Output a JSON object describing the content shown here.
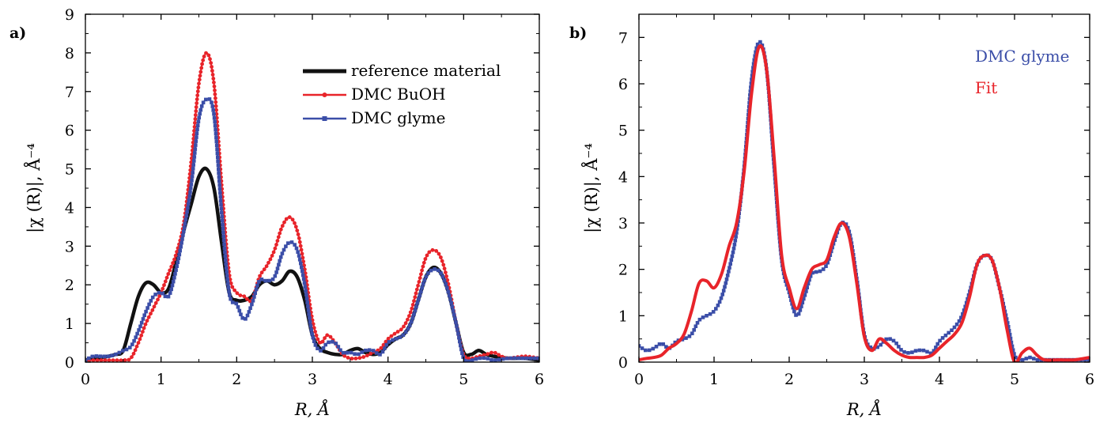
{
  "chart_data": [
    {
      "type": "line",
      "panel_label": "a)",
      "xlabel": "R, Å",
      "ylabel": "|χ (R)|, Å⁻⁴",
      "xlim": [
        0,
        6
      ],
      "ylim": [
        0,
        9
      ],
      "xticks": [
        "0",
        "1",
        "2",
        "3",
        "4",
        "5",
        "6"
      ],
      "yticks": [
        "0",
        "1",
        "2",
        "3",
        "4",
        "5",
        "6",
        "7",
        "8",
        "9"
      ],
      "legend_position": "top-right",
      "series": [
        {
          "name": "reference material",
          "color": "#111111",
          "marker": "none",
          "x": [
            0,
            0.1,
            0.2,
            0.3,
            0.4,
            0.5,
            0.6,
            0.7,
            0.8,
            0.9,
            1.0,
            1.1,
            1.2,
            1.3,
            1.4,
            1.5,
            1.6,
            1.7,
            1.8,
            1.9,
            2.0,
            2.1,
            2.2,
            2.3,
            2.4,
            2.5,
            2.6,
            2.7,
            2.8,
            2.9,
            3.0,
            3.1,
            3.2,
            3.3,
            3.4,
            3.5,
            3.6,
            3.7,
            3.8,
            3.9,
            4.0,
            4.1,
            4.2,
            4.3,
            4.4,
            4.5,
            4.6,
            4.7,
            4.8,
            4.9,
            5.0,
            5.1,
            5.2,
            5.3,
            5.4,
            5.6,
            5.8,
            6.0
          ],
          "y": [
            0.05,
            0.1,
            0.12,
            0.15,
            0.2,
            0.3,
            1.0,
            1.7,
            2.05,
            2.0,
            1.8,
            1.9,
            2.6,
            3.4,
            4.1,
            4.8,
            5.0,
            4.5,
            3.1,
            1.8,
            1.6,
            1.6,
            1.7,
            2.0,
            2.1,
            2.0,
            2.1,
            2.35,
            2.2,
            1.6,
            0.7,
            0.35,
            0.25,
            0.2,
            0.2,
            0.3,
            0.35,
            0.25,
            0.2,
            0.25,
            0.45,
            0.6,
            0.7,
            1.0,
            1.6,
            2.2,
            2.45,
            2.3,
            1.8,
            1.0,
            0.25,
            0.2,
            0.3,
            0.2,
            0.15,
            0.1,
            0.1,
            0.05
          ]
        },
        {
          "name": "DMC BuOH",
          "color": "#e8242a",
          "marker": "circle",
          "x": [
            0,
            0.1,
            0.2,
            0.3,
            0.4,
            0.5,
            0.6,
            0.7,
            0.8,
            0.9,
            1.0,
            1.1,
            1.2,
            1.3,
            1.4,
            1.5,
            1.6,
            1.7,
            1.8,
            1.9,
            2.0,
            2.1,
            2.2,
            2.3,
            2.4,
            2.5,
            2.6,
            2.7,
            2.8,
            2.9,
            3.0,
            3.1,
            3.2,
            3.3,
            3.4,
            3.5,
            3.6,
            3.7,
            3.8,
            3.9,
            4.0,
            4.1,
            4.2,
            4.3,
            4.4,
            4.5,
            4.6,
            4.7,
            4.8,
            4.9,
            5.0,
            5.1,
            5.2,
            5.3,
            5.4,
            5.5,
            5.6,
            5.8,
            6.0
          ],
          "y": [
            0.05,
            0.05,
            0.05,
            0.05,
            0.05,
            0.05,
            0.1,
            0.5,
            1.0,
            1.4,
            1.8,
            2.3,
            2.8,
            3.6,
            5.2,
            7.2,
            8.0,
            7.2,
            4.6,
            2.3,
            1.8,
            1.7,
            1.6,
            2.2,
            2.5,
            2.9,
            3.5,
            3.75,
            3.4,
            2.4,
            1.1,
            0.5,
            0.7,
            0.5,
            0.2,
            0.1,
            0.1,
            0.15,
            0.25,
            0.35,
            0.6,
            0.75,
            0.9,
            1.3,
            2.0,
            2.7,
            2.9,
            2.7,
            2.0,
            1.0,
            0.2,
            0.1,
            0.15,
            0.2,
            0.25,
            0.15,
            0.1,
            0.15,
            0.1
          ]
        },
        {
          "name": "DMC glyme",
          "color": "#3b4ea8",
          "marker": "square",
          "x": [
            0,
            0.1,
            0.2,
            0.3,
            0.4,
            0.5,
            0.6,
            0.7,
            0.8,
            0.9,
            1.0,
            1.1,
            1.2,
            1.3,
            1.4,
            1.5,
            1.6,
            1.7,
            1.8,
            1.9,
            2.0,
            2.1,
            2.2,
            2.3,
            2.4,
            2.5,
            2.6,
            2.7,
            2.8,
            2.9,
            3.0,
            3.1,
            3.2,
            3.3,
            3.4,
            3.5,
            3.6,
            3.7,
            3.8,
            3.9,
            4.0,
            4.1,
            4.2,
            4.3,
            4.4,
            4.5,
            4.6,
            4.7,
            4.8,
            4.9,
            5.0,
            5.1,
            5.2,
            5.3,
            5.4,
            5.6,
            5.8,
            6.0
          ],
          "y": [
            0.05,
            0.15,
            0.15,
            0.15,
            0.2,
            0.3,
            0.4,
            0.8,
            1.3,
            1.7,
            1.8,
            1.7,
            2.4,
            3.4,
            4.6,
            6.3,
            6.8,
            6.4,
            3.9,
            1.8,
            1.5,
            1.1,
            1.5,
            2.1,
            2.1,
            2.2,
            2.8,
            3.1,
            2.9,
            2.0,
            0.7,
            0.3,
            0.5,
            0.5,
            0.25,
            0.25,
            0.2,
            0.3,
            0.3,
            0.2,
            0.5,
            0.6,
            0.7,
            1.0,
            1.6,
            2.2,
            2.4,
            2.3,
            1.8,
            1.0,
            0.1,
            0.05,
            0.1,
            0.1,
            0.05,
            0.1,
            0.1,
            0.1
          ]
        }
      ]
    },
    {
      "type": "line",
      "panel_label": "b)",
      "xlabel": "R, Å",
      "ylabel": "|χ (R)|, Å⁻⁴",
      "xlim": [
        0,
        6
      ],
      "ylim": [
        0,
        7.5
      ],
      "xticks": [
        "0",
        "1",
        "2",
        "3",
        "4",
        "5",
        "6"
      ],
      "yticks": [
        "0",
        "1",
        "2",
        "3",
        "4",
        "5",
        "6",
        "7"
      ],
      "legend_position": "top-right",
      "series": [
        {
          "name": "DMC glyme",
          "color": "#3b4ea8",
          "marker": "square",
          "x": [
            0,
            0.1,
            0.2,
            0.3,
            0.4,
            0.5,
            0.6,
            0.7,
            0.8,
            0.9,
            1.0,
            1.1,
            1.2,
            1.3,
            1.4,
            1.5,
            1.6,
            1.7,
            1.8,
            1.9,
            2.0,
            2.1,
            2.2,
            2.3,
            2.4,
            2.5,
            2.6,
            2.7,
            2.8,
            2.9,
            3.0,
            3.1,
            3.2,
            3.3,
            3.4,
            3.5,
            3.6,
            3.7,
            3.8,
            3.9,
            4.0,
            4.1,
            4.2,
            4.3,
            4.4,
            4.5,
            4.6,
            4.7,
            4.8,
            4.9,
            5.0,
            5.1,
            5.2,
            5.3,
            5.4,
            5.6,
            5.8,
            6.0
          ],
          "y": [
            0.35,
            0.25,
            0.3,
            0.4,
            0.3,
            0.45,
            0.5,
            0.6,
            0.9,
            1.0,
            1.1,
            1.4,
            2.0,
            2.8,
            4.2,
            6.1,
            6.9,
            6.3,
            4.2,
            2.2,
            1.5,
            1.0,
            1.4,
            1.9,
            1.95,
            2.1,
            2.6,
            3.0,
            2.8,
            1.8,
            0.6,
            0.3,
            0.35,
            0.5,
            0.45,
            0.25,
            0.2,
            0.25,
            0.25,
            0.2,
            0.45,
            0.6,
            0.75,
            1.0,
            1.5,
            2.1,
            2.3,
            2.2,
            1.6,
            0.9,
            0.15,
            0.05,
            0.1,
            0.05,
            0.05,
            0.05,
            0.05,
            0.05
          ]
        },
        {
          "name": "Fit",
          "color": "#e8242a",
          "marker": "none",
          "x": [
            0,
            0.1,
            0.2,
            0.3,
            0.4,
            0.5,
            0.6,
            0.7,
            0.8,
            0.9,
            1.0,
            1.1,
            1.2,
            1.3,
            1.4,
            1.5,
            1.6,
            1.7,
            1.8,
            1.9,
            2.0,
            2.1,
            2.2,
            2.3,
            2.4,
            2.5,
            2.6,
            2.7,
            2.8,
            2.9,
            3.0,
            3.1,
            3.2,
            3.3,
            3.4,
            3.5,
            3.6,
            3.7,
            3.8,
            3.9,
            4.0,
            4.1,
            4.2,
            4.3,
            4.4,
            4.5,
            4.6,
            4.7,
            4.8,
            4.9,
            5.0,
            5.1,
            5.2,
            5.3,
            5.4,
            5.6,
            5.8,
            6.0
          ],
          "y": [
            0.05,
            0.08,
            0.1,
            0.15,
            0.3,
            0.4,
            0.6,
            1.1,
            1.7,
            1.75,
            1.6,
            1.9,
            2.5,
            3.0,
            4.1,
            5.8,
            6.8,
            6.3,
            4.4,
            2.3,
            1.6,
            1.15,
            1.6,
            2.0,
            2.1,
            2.2,
            2.7,
            3.0,
            2.7,
            1.7,
            0.55,
            0.25,
            0.5,
            0.4,
            0.25,
            0.15,
            0.1,
            0.1,
            0.1,
            0.15,
            0.3,
            0.45,
            0.6,
            0.85,
            1.4,
            2.1,
            2.3,
            2.2,
            1.6,
            0.7,
            0.0,
            0.2,
            0.3,
            0.15,
            0.05,
            0.05,
            0.05,
            0.1
          ]
        }
      ]
    }
  ]
}
